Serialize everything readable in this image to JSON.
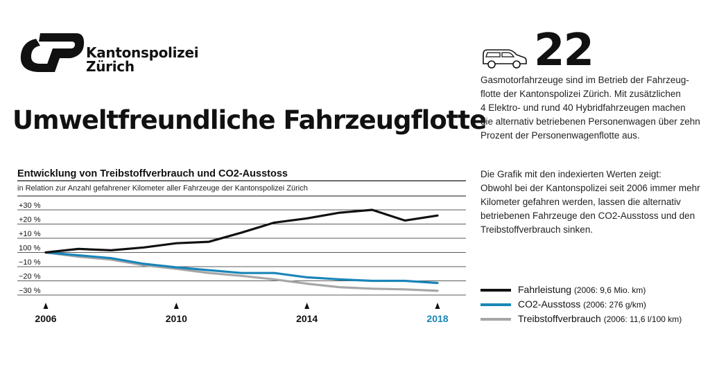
{
  "header": {
    "org_line1": "Kantonspolizei",
    "org_line2": "Zürich",
    "title": "Umweltfreundliche Fahrzeugflotte"
  },
  "icons": {
    "logo": "kapo-logo-icon",
    "car": "van-icon"
  },
  "facts": {
    "number": "22",
    "paragraph1": [
      "Gasmotorfahrzeuge sind im Betrieb der Fahrzeug-",
      "flotte der Kantonspolizei Zürich. Mit zusätzlichen",
      "4 Elektro- und rund 40 Hybridfahrzeugen machen",
      "die alternativ betriebenen Personenwagen über zehn",
      "Prozent der Personenwagenflotte aus."
    ],
    "paragraph2": [
      "Die Grafik mit den indexierten Werten zeigt:",
      "Obwohl bei der Kantonspolizei seit 2006 immer mehr",
      "Kilometer gefahren werden, lassen die alternativ",
      "betriebenen Fahrzeuge den CO2-Ausstoss und den",
      "Treibstoffverbrauch sinken."
    ]
  },
  "chart_data": {
    "type": "line",
    "title": "Entwicklung von Treibstoffverbrauch und CO2-Ausstoss",
    "subtitle": "in Relation zur Anzahl gefahrener Kilometer aller Fahrzeuge der Kantonspolizei Zürich",
    "x": [
      2006,
      2007,
      2008,
      2009,
      2010,
      2011,
      2012,
      2013,
      2014,
      2015,
      2016,
      2017,
      2018
    ],
    "x_ticks": [
      "2006",
      "2010",
      "2014",
      "2018"
    ],
    "highlight_tick": "2018",
    "y_ticks": [
      {
        "value": 30,
        "label": "+30 %"
      },
      {
        "value": 20,
        "label": "+20 %"
      },
      {
        "value": 10,
        "label": "+10 %"
      },
      {
        "value": 0,
        "label": "100 %"
      },
      {
        "value": -10,
        "label": "−10 %"
      },
      {
        "value": -20,
        "label": "−20 %"
      },
      {
        "value": -30,
        "label": "−30 %"
      }
    ],
    "ylim": [
      -35,
      30
    ],
    "grid": true,
    "legend_position": "right",
    "series": [
      {
        "name": "Fahrleistung",
        "note": "(2006: 9,6 Mio. km)",
        "color": "#111111",
        "values": [
          0,
          2.5,
          1.5,
          3.5,
          6.5,
          7.5,
          14,
          21,
          24,
          28,
          30,
          22.5,
          26
        ]
      },
      {
        "name": "CO2-Ausstoss",
        "note": "(2006: 276 g/km)",
        "color": "#1a85b8",
        "values": [
          0,
          -2,
          -4,
          -8,
          -10.5,
          -12.5,
          -14.5,
          -14.5,
          -17.5,
          -19,
          -20,
          -20,
          -21.5
        ]
      },
      {
        "name": "Treibstoffverbrauch",
        "note": "(2006: 11,6 l/100 km)",
        "color": "#a6a6a6",
        "values": [
          0,
          -3,
          -5,
          -9,
          -11.5,
          -14.5,
          -16.5,
          -19,
          -22,
          -24.5,
          -25.5,
          -26,
          -27
        ]
      }
    ]
  }
}
